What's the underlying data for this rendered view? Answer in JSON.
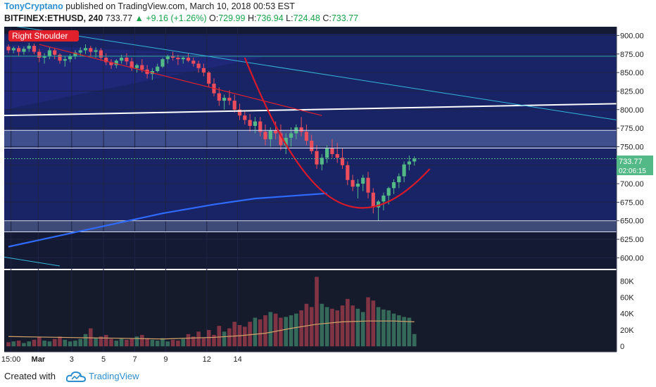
{
  "header": {
    "author": "TonyCryptano",
    "published_text": " published on TradingView.com, March 10, 2018 00:53 EST",
    "symbol": "BITFINEX:ETHUSD, 240",
    "last": "733.77",
    "change": "▲ +9.16 (+1.26%)",
    "o_label": "O:",
    "o": "729.99",
    "h_label": "H:",
    "h": "736.94",
    "l_label": "L:",
    "l": "724.48",
    "c_label": "C:",
    "c": "733.77"
  },
  "annotation": {
    "label": "Right Shoulder"
  },
  "price_tag": {
    "value": "733.77",
    "countdown": "02:06:15"
  },
  "footer": {
    "created_with": "Created with",
    "brand": "TradingView"
  },
  "colors": {
    "bg": "#141a33",
    "up": "#53b987",
    "down": "#eb4d5c",
    "cup_curve": "#d7192a",
    "trend_red": "#e0212b",
    "trend_cyan": "#35b6d8",
    "ma": "#2f6bff",
    "white_line": "#ffffff",
    "zone_fill": "#1c2e8f",
    "volume_ma": "#d4a26a"
  },
  "chart_data": {
    "type": "candlestick",
    "price_axis": {
      "ticks": [
        900,
        875,
        850,
        825,
        800,
        775,
        750,
        725,
        700,
        675,
        650,
        625,
        600
      ],
      "ylim": [
        589,
        908
      ]
    },
    "volume_axis": {
      "ticks": [
        80000,
        60000,
        40000,
        20000,
        0
      ],
      "tick_labels": [
        "80K",
        "60K",
        "40K",
        "20K",
        "0"
      ],
      "ylim": [
        -5000,
        88000
      ]
    },
    "x_axis": {
      "labels": [
        "15:00",
        "Mar",
        "3",
        "5",
        "7",
        "9",
        "12",
        "14"
      ],
      "positions": [
        0.5,
        5.8,
        12.3,
        18.5,
        24.6,
        30.6,
        38.6,
        44.6
      ]
    },
    "candles": [
      [
        885,
        888,
        876,
        880,
        5000
      ],
      [
        880,
        885,
        876,
        883,
        6000
      ],
      [
        883,
        886,
        872,
        878,
        7000
      ],
      [
        878,
        885,
        874,
        882,
        4000
      ],
      [
        882,
        890,
        878,
        886,
        6000
      ],
      [
        886,
        889,
        875,
        878,
        8000
      ],
      [
        878,
        882,
        864,
        870,
        11000
      ],
      [
        870,
        876,
        862,
        872,
        7000
      ],
      [
        872,
        884,
        868,
        880,
        6000
      ],
      [
        880,
        883,
        868,
        874,
        9000
      ],
      [
        874,
        876,
        862,
        866,
        12000
      ],
      [
        866,
        872,
        858,
        868,
        8000
      ],
      [
        868,
        875,
        864,
        872,
        6000
      ],
      [
        872,
        880,
        868,
        877,
        7000
      ],
      [
        877,
        884,
        872,
        880,
        9000
      ],
      [
        880,
        888,
        875,
        883,
        15000
      ],
      [
        883,
        886,
        872,
        878,
        22000
      ],
      [
        878,
        884,
        870,
        880,
        10000
      ],
      [
        880,
        883,
        866,
        870,
        12000
      ],
      [
        870,
        876,
        860,
        864,
        14000
      ],
      [
        864,
        868,
        855,
        860,
        9000
      ],
      [
        860,
        868,
        856,
        866,
        7000
      ],
      [
        866,
        874,
        862,
        870,
        10000
      ],
      [
        870,
        876,
        860,
        865,
        8000
      ],
      [
        865,
        870,
        852,
        856,
        9000
      ],
      [
        856,
        862,
        850,
        860,
        12000
      ],
      [
        860,
        868,
        850,
        854,
        14000
      ],
      [
        854,
        860,
        842,
        848,
        10000
      ],
      [
        848,
        856,
        840,
        852,
        8000
      ],
      [
        852,
        862,
        850,
        858,
        7000
      ],
      [
        858,
        870,
        856,
        868,
        10000
      ],
      [
        868,
        874,
        862,
        872,
        6000
      ],
      [
        872,
        878,
        866,
        870,
        8000
      ],
      [
        870,
        874,
        860,
        868,
        7000
      ],
      [
        868,
        872,
        862,
        870,
        9000
      ],
      [
        870,
        876,
        864,
        866,
        15000
      ],
      [
        866,
        870,
        858,
        862,
        12000
      ],
      [
        862,
        866,
        850,
        856,
        18000
      ],
      [
        856,
        862,
        845,
        850,
        10000
      ],
      [
        850,
        852,
        830,
        835,
        20000
      ],
      [
        835,
        842,
        818,
        822,
        14000
      ],
      [
        822,
        830,
        805,
        812,
        25000
      ],
      [
        812,
        820,
        800,
        816,
        18000
      ],
      [
        816,
        826,
        806,
        812,
        22000
      ],
      [
        812,
        820,
        796,
        800,
        30000
      ],
      [
        800,
        808,
        786,
        792,
        26000
      ],
      [
        792,
        798,
        780,
        786,
        24000
      ],
      [
        786,
        794,
        770,
        778,
        30000
      ],
      [
        778,
        790,
        768,
        784,
        35000
      ],
      [
        784,
        790,
        764,
        770,
        33000
      ],
      [
        770,
        780,
        752,
        760,
        38000
      ],
      [
        760,
        776,
        750,
        772,
        42000
      ],
      [
        772,
        784,
        760,
        768,
        40000
      ],
      [
        768,
        780,
        745,
        752,
        35000
      ],
      [
        752,
        768,
        740,
        762,
        36000
      ],
      [
        762,
        776,
        750,
        768,
        38000
      ],
      [
        768,
        780,
        760,
        776,
        40000
      ],
      [
        776,
        790,
        764,
        770,
        44000
      ],
      [
        770,
        780,
        752,
        758,
        52000
      ],
      [
        758,
        766,
        740,
        744,
        48000
      ],
      [
        744,
        752,
        720,
        726,
        85000
      ],
      [
        726,
        740,
        718,
        735,
        52000
      ],
      [
        735,
        752,
        728,
        748,
        48000
      ],
      [
        748,
        760,
        735,
        740,
        46000
      ],
      [
        740,
        755,
        728,
        735,
        44000
      ],
      [
        735,
        748,
        720,
        725,
        50000
      ],
      [
        725,
        730,
        698,
        705,
        58000
      ],
      [
        705,
        712,
        690,
        696,
        50000
      ],
      [
        696,
        706,
        680,
        700,
        46000
      ],
      [
        700,
        712,
        690,
        708,
        42000
      ],
      [
        708,
        716,
        680,
        688,
        60000
      ],
      [
        688,
        694,
        660,
        668,
        56000
      ],
      [
        668,
        678,
        650,
        676,
        48000
      ],
      [
        676,
        688,
        664,
        684,
        45000
      ],
      [
        684,
        696,
        672,
        694,
        44000
      ],
      [
        694,
        706,
        686,
        702,
        40000
      ],
      [
        702,
        714,
        694,
        710,
        38000
      ],
      [
        710,
        730,
        702,
        726,
        36000
      ],
      [
        726,
        738,
        718,
        730,
        35000
      ],
      [
        729.99,
        736.94,
        724.48,
        733.77,
        15000
      ]
    ],
    "moving_average_price": [
      [
        0,
        615
      ],
      [
        10,
        630
      ],
      [
        20,
        645
      ],
      [
        30,
        660
      ],
      [
        40,
        672
      ],
      [
        48,
        680
      ],
      [
        56,
        684
      ],
      [
        62,
        687
      ]
    ],
    "volume_ma": [
      [
        0,
        12000
      ],
      [
        10,
        11000
      ],
      [
        20,
        10000
      ],
      [
        30,
        9000
      ],
      [
        40,
        11000
      ],
      [
        45,
        13000
      ],
      [
        50,
        16000
      ],
      [
        55,
        22000
      ],
      [
        60,
        27000
      ],
      [
        65,
        30000
      ],
      [
        70,
        31000
      ],
      [
        75,
        31000
      ],
      [
        79,
        30000
      ]
    ]
  }
}
